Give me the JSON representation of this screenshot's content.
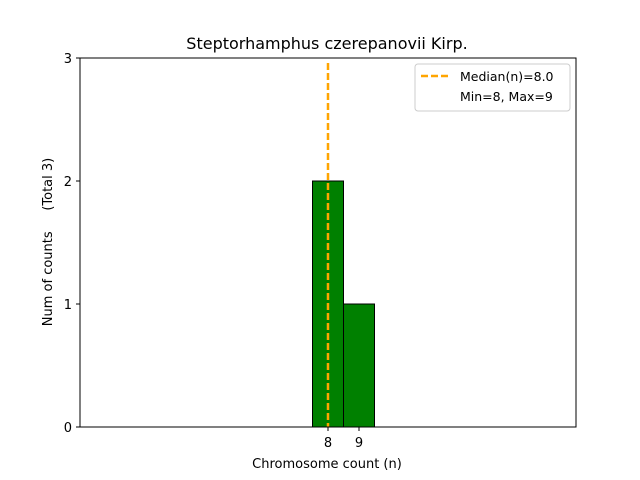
{
  "chart_data": {
    "type": "bar",
    "title": "Steptorhamphus czerepanovii Kirp.",
    "xlabel": "Chromosome count (n)",
    "ylabel": "Num of counts     (Total 3)",
    "categories": [
      "8",
      "9"
    ],
    "x": [
      8,
      9
    ],
    "values": [
      2,
      1
    ],
    "xlim": [
      0,
      16
    ],
    "ylim": [
      0,
      3
    ],
    "yticks": [
      0,
      1,
      2,
      3
    ],
    "xticks": [
      8,
      9
    ],
    "median": 8.0,
    "legend": {
      "placement": "top-right",
      "entries": [
        "Median(n)=8.0",
        "Min=8, Max=9"
      ]
    },
    "colors": {
      "bar_fill": "#008000",
      "bar_edge": "#000000",
      "median_line": "#FFA500"
    },
    "grid": false
  }
}
